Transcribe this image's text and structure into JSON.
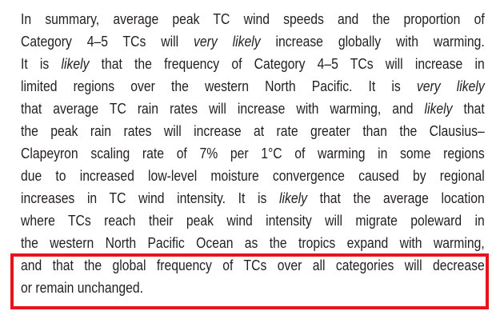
{
  "paragraph": {
    "lines": [
      [
        "In summary, average peak TC wind speeds and the proportion of"
      ],
      [
        "Category 4–5 TCs will ",
        {
          "text": "very likely",
          "italic": true
        },
        " increase globally with warming."
      ],
      [
        "It is ",
        {
          "text": "likely",
          "italic": true
        },
        " that the frequency of Category 4–5 TCs will increase in"
      ],
      [
        "limited regions over the western North Pacific. It is ",
        {
          "text": "very likely",
          "italic": true
        }
      ],
      [
        "that average TC rain rates will increase with warming, and ",
        {
          "text": "likely",
          "italic": true
        },
        " that"
      ],
      [
        "the peak rain rates will increase at rate greater than the Clausius–"
      ],
      [
        "Clapeyron scaling rate of 7% per 1°C of warming in some regions"
      ],
      [
        "due to increased low-level moisture convergence caused by regional"
      ],
      [
        "increases in TC wind intensity. It is ",
        {
          "text": "likely",
          "italic": true
        },
        " that the average location"
      ],
      [
        "where TCs reach their peak wind intensity will migrate poleward in"
      ],
      [
        "the western North Pacific Ocean as the tropics expand with warming,"
      ],
      [
        "and that the global frequency of TCs over all categories will decrease"
      ],
      [
        "or remain unchanged."
      ]
    ]
  }
}
